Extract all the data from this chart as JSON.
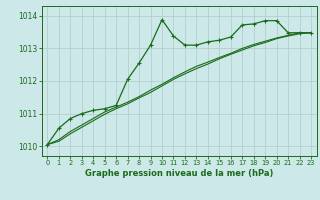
{
  "title": "Graphe pression niveau de la mer (hPa)",
  "background_color": "#cce8e8",
  "grid_color": "#b0c8c8",
  "line_color": "#1a6b1a",
  "xlim": [
    -0.5,
    23.5
  ],
  "ylim": [
    1009.7,
    1014.3
  ],
  "yticks": [
    1010,
    1011,
    1012,
    1013,
    1014
  ],
  "xticks": [
    0,
    1,
    2,
    3,
    4,
    5,
    6,
    7,
    8,
    9,
    10,
    11,
    12,
    13,
    14,
    15,
    16,
    17,
    18,
    19,
    20,
    21,
    22,
    23
  ],
  "series1_x": [
    0,
    1,
    2,
    3,
    4,
    5,
    6,
    7,
    8,
    9,
    10,
    11,
    12,
    13,
    14,
    15,
    16,
    17,
    18,
    19,
    20,
    21,
    22,
    23
  ],
  "series1_y": [
    1010.05,
    1010.55,
    1010.85,
    1011.0,
    1011.1,
    1011.15,
    1011.25,
    1012.05,
    1012.55,
    1013.1,
    1013.88,
    1013.38,
    1013.1,
    1013.1,
    1013.2,
    1013.25,
    1013.35,
    1013.72,
    1013.75,
    1013.85,
    1013.85,
    1013.48,
    1013.48,
    1013.48
  ],
  "series2_x": [
    0,
    1,
    2,
    3,
    4,
    5,
    6,
    7,
    8,
    9,
    10,
    11,
    12,
    13,
    14,
    15,
    16,
    17,
    18,
    19,
    20,
    21,
    22,
    23
  ],
  "series2_y": [
    1010.05,
    1010.2,
    1010.45,
    1010.65,
    1010.85,
    1011.05,
    1011.2,
    1011.35,
    1011.52,
    1011.72,
    1011.9,
    1012.1,
    1012.28,
    1012.45,
    1012.58,
    1012.72,
    1012.85,
    1013.0,
    1013.12,
    1013.22,
    1013.32,
    1013.4,
    1013.48,
    1013.48
  ],
  "series3_x": [
    0,
    1,
    2,
    3,
    4,
    5,
    6,
    7,
    8,
    9,
    10,
    11,
    12,
    13,
    14,
    15,
    16,
    17,
    18,
    19,
    20,
    21,
    22,
    23
  ],
  "series3_y": [
    1010.05,
    1010.15,
    1010.38,
    1010.58,
    1010.78,
    1010.98,
    1011.15,
    1011.3,
    1011.48,
    1011.65,
    1011.85,
    1012.05,
    1012.22,
    1012.38,
    1012.52,
    1012.68,
    1012.82,
    1012.95,
    1013.08,
    1013.18,
    1013.3,
    1013.38,
    1013.45,
    1013.48
  ]
}
